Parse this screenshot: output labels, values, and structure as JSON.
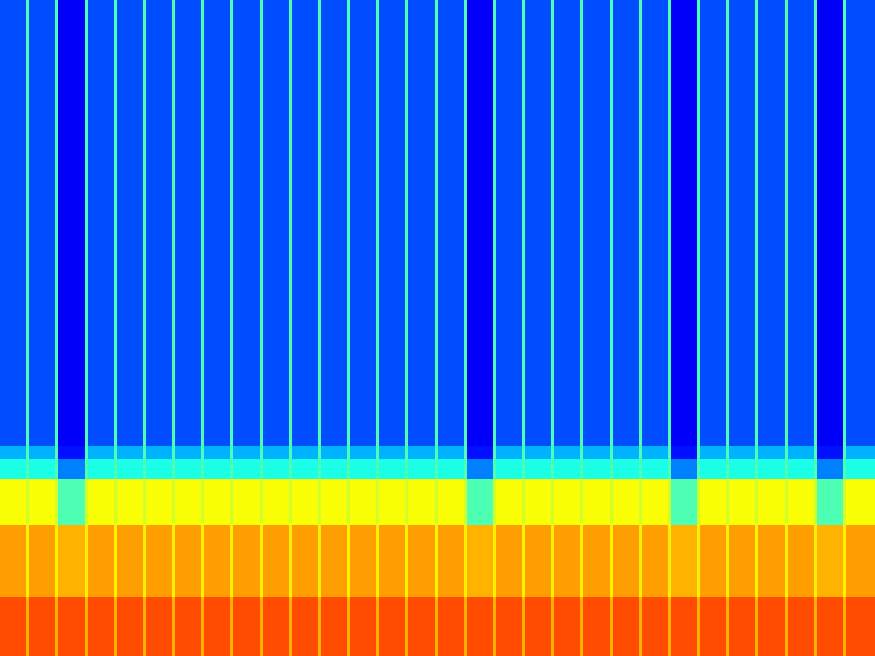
{
  "chart_data": {
    "type": "heatmap",
    "color": "jet",
    "tick_labels": false,
    "xlim": [
      0,
      300
    ],
    "ylim": [
      0,
      100
    ],
    "zlim": [
      0,
      100
    ],
    "x_bins": [
      0,
      9,
      10,
      19,
      20,
      29,
      30,
      39,
      40,
      49,
      50,
      59,
      60,
      69,
      70,
      79,
      80,
      89,
      90,
      99,
      100,
      109,
      110,
      119,
      120,
      129,
      130,
      139,
      140,
      149,
      150,
      159,
      160,
      169,
      170,
      179,
      180,
      189,
      190,
      199,
      200,
      209,
      210,
      219,
      220,
      229,
      230,
      239,
      240,
      249,
      250,
      259,
      260,
      269,
      270,
      279,
      280,
      289,
      290,
      300
    ],
    "y_bins": [
      0,
      9,
      20,
      27,
      30,
      32,
      100
    ],
    "values": [
      [
        80,
        70,
        80,
        70,
        80,
        70,
        80,
        70,
        80,
        70,
        80,
        70,
        80,
        70,
        80,
        70,
        80,
        70,
        80,
        70,
        80,
        70,
        80,
        70,
        80,
        70,
        80,
        70,
        80,
        70,
        80,
        70,
        80,
        70,
        80,
        70,
        80,
        70,
        80,
        70,
        80,
        70,
        80,
        70,
        80,
        70,
        80,
        70,
        80,
        70,
        80,
        70,
        80,
        70,
        80,
        70,
        80,
        70,
        80
      ],
      [
        72,
        64,
        72,
        64,
        70,
        64,
        72,
        64,
        72,
        64,
        72,
        64,
        72,
        64,
        72,
        64,
        72,
        64,
        72,
        64,
        72,
        64,
        72,
        64,
        72,
        64,
        72,
        64,
        72,
        64,
        72,
        64,
        70,
        64,
        72,
        64,
        72,
        64,
        72,
        64,
        72,
        64,
        72,
        64,
        72,
        64,
        70,
        64,
        72,
        64,
        72,
        64,
        72,
        64,
        72,
        64,
        70,
        64,
        72
      ],
      [
        62,
        58,
        62,
        58,
        45,
        58,
        62,
        58,
        62,
        58,
        62,
        58,
        62,
        58,
        62,
        58,
        62,
        58,
        62,
        58,
        62,
        58,
        62,
        58,
        62,
        58,
        62,
        58,
        62,
        58,
        62,
        58,
        45,
        58,
        62,
        58,
        62,
        58,
        62,
        58,
        62,
        58,
        62,
        58,
        62,
        58,
        45,
        58,
        62,
        58,
        62,
        58,
        62,
        58,
        62,
        58,
        45,
        58,
        62
      ],
      [
        40,
        45,
        40,
        45,
        25,
        45,
        40,
        45,
        40,
        45,
        40,
        45,
        40,
        45,
        40,
        45,
        40,
        45,
        40,
        45,
        40,
        45,
        40,
        45,
        40,
        45,
        40,
        45,
        40,
        45,
        40,
        45,
        25,
        45,
        40,
        45,
        40,
        45,
        40,
        45,
        40,
        45,
        40,
        45,
        40,
        45,
        25,
        45,
        40,
        45,
        40,
        45,
        40,
        45,
        40,
        45,
        25,
        45,
        40
      ],
      [
        30,
        45,
        30,
        45,
        14,
        45,
        30,
        45,
        30,
        45,
        30,
        45,
        30,
        45,
        30,
        45,
        30,
        45,
        30,
        45,
        30,
        45,
        30,
        45,
        30,
        45,
        30,
        45,
        30,
        45,
        30,
        45,
        14,
        45,
        30,
        45,
        30,
        45,
        30,
        45,
        30,
        45,
        30,
        45,
        30,
        45,
        14,
        45,
        30,
        45,
        30,
        45,
        30,
        45,
        30,
        45,
        14,
        45,
        30
      ],
      [
        20,
        45,
        20,
        45,
        12,
        45,
        20,
        45,
        20,
        45,
        20,
        45,
        20,
        45,
        20,
        45,
        20,
        45,
        20,
        45,
        20,
        45,
        20,
        45,
        20,
        45,
        20,
        45,
        20,
        45,
        20,
        45,
        12,
        45,
        20,
        45,
        20,
        45,
        20,
        45,
        20,
        45,
        20,
        45,
        20,
        45,
        12,
        45,
        20,
        45,
        20,
        45,
        20,
        45,
        20,
        45,
        12,
        45,
        20
      ]
    ]
  }
}
